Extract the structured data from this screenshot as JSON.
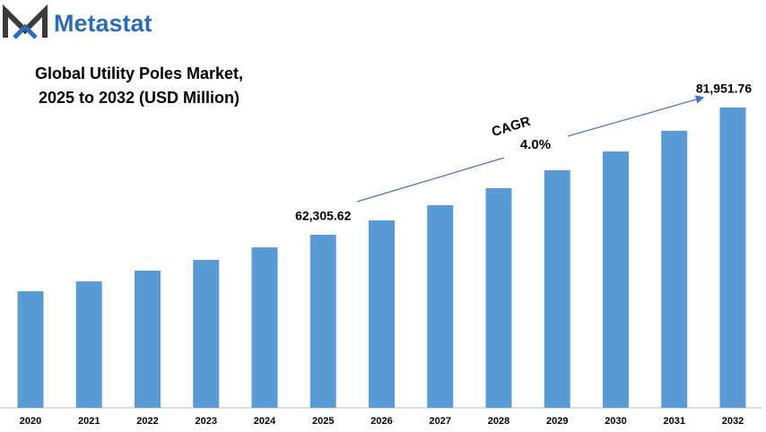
{
  "brand": "Metastat",
  "chart_data": {
    "type": "bar",
    "title": [
      "Global Utility Poles Market,",
      "2025 to 2032 (USD Million)"
    ],
    "categories": [
      "2020",
      "2021",
      "2022",
      "2023",
      "2024",
      "2025",
      "2026",
      "2027",
      "2028",
      "2029",
      "2030",
      "2031",
      "2032"
    ],
    "values": [
      53590,
      55111,
      56772,
      58432,
      60369,
      62305.62,
      64520,
      66872,
      69500,
      72267,
      75172,
      78354,
      81951.76
    ],
    "value_labels": [
      null,
      null,
      null,
      null,
      null,
      "62,305.62",
      null,
      null,
      null,
      null,
      null,
      null,
      "81,951.76"
    ],
    "annotations": [
      "CAGR",
      "4.0%"
    ],
    "color": "#5b9bd5",
    "ylim": [
      35600,
      84700
    ]
  }
}
